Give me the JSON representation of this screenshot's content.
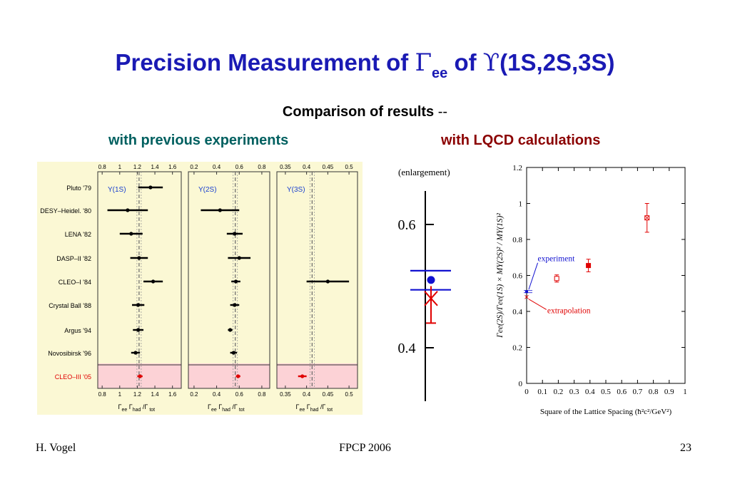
{
  "header": {
    "title_part1": "Precision Measurement of ",
    "gamma_symbol": "Γ",
    "gamma_sub": "ee",
    "title_part2": " of ",
    "upsilon_symbol": "ϒ",
    "title_part3": "(1S,2S,3S)",
    "subtitle": "Comparison of results",
    "subtitle_dash": " --",
    "left_heading": "with previous experiments",
    "right_heading": "with LQCD calculations"
  },
  "footer": {
    "author": "H. Vogel",
    "conference": "FPCP 2006",
    "page": "23"
  },
  "colors": {
    "title": "#1a1ab4",
    "left_heading": "#006060",
    "right_heading": "#8b0000",
    "cleo_iii": "#e00000",
    "experiment": "#1010d0",
    "lqcd": "#e00000"
  },
  "chart_data": [
    {
      "type": "scatter",
      "panel": "Υ(1S)",
      "experiments": [
        "Pluto '79",
        "DESY–Heidel. '80",
        "LENA '82",
        "DASP–II '82",
        "CLEO–I '84",
        "Crystal Ball '88",
        "Argus '94",
        "Novosibirsk '96",
        "CLEO–III '05"
      ],
      "values": [
        1.35,
        1.09,
        1.13,
        1.22,
        1.38,
        1.21,
        1.21,
        1.18,
        1.23
      ],
      "errors": [
        0.14,
        0.23,
        0.13,
        0.1,
        0.11,
        0.07,
        0.06,
        0.05,
        0.03
      ],
      "ticks": [
        "0.8",
        "1",
        "1.2",
        "1.4",
        "1.6"
      ],
      "xlim": [
        0.75,
        1.7
      ],
      "ref_line": 1.22,
      "xlabel": [
        "Γ",
        "ee",
        " Γ",
        "had",
        " /Γ",
        " tot"
      ]
    },
    {
      "type": "scatter",
      "panel": "Υ(2S)",
      "values": [
        null,
        0.43,
        0.56,
        0.6,
        0.57,
        0.56,
        0.52,
        0.55,
        0.59
      ],
      "errors": [
        null,
        0.17,
        0.07,
        0.1,
        0.04,
        0.04,
        0.02,
        0.03,
        0.02
      ],
      "ticks": [
        "0.2",
        "0.4",
        "0.6",
        "0.8"
      ],
      "xlim": [
        0.15,
        0.87
      ],
      "ref_line": 0.565,
      "xlabel": [
        "Γ",
        "ee",
        " Γ",
        "had",
        " /Γ",
        " tot"
      ]
    },
    {
      "type": "scatter",
      "panel": "Υ(3S)",
      "values": [
        null,
        null,
        null,
        null,
        0.45,
        null,
        null,
        null,
        0.39
      ],
      "errors": [
        null,
        null,
        null,
        null,
        0.05,
        null,
        null,
        null,
        0.01
      ],
      "ticks": [
        "0.35",
        "0.4",
        "0.45",
        "0.5"
      ],
      "xlim": [
        0.33,
        0.52
      ],
      "ref_line": 0.413,
      "xlabel": [
        "Γ",
        "ee",
        " Γ",
        "had",
        " /Γ",
        " tot"
      ]
    },
    {
      "type": "scatter",
      "title": "(enlargement)",
      "ticks": [
        "0.6",
        "0.4"
      ],
      "ylim": [
        0.35,
        0.68
      ],
      "experiment": {
        "value": 0.51,
        "band": [
          0.494,
          0.525
        ]
      },
      "lqcd": {
        "value": 0.48,
        "error": [
          0.44,
          0.5
        ]
      }
    },
    {
      "type": "scatter",
      "xlabel": "Square of the Lattice Spacing (ħ²c²/GeV²)",
      "ylabel": "Γee(2S)/Γee(1S) × MΥ(2S)² / MΥ(1S)²",
      "xticks": [
        "0",
        "0.1",
        "0.2",
        "0.3",
        "0.4",
        "0.5",
        "0.6",
        "0.7",
        "0.8",
        "0.9",
        "1"
      ],
      "yticks": [
        "0",
        "0.2",
        "0.4",
        "0.6",
        "0.8",
        "1",
        "1.2"
      ],
      "xlim": [
        0,
        1
      ],
      "ylim": [
        0,
        1.2
      ],
      "points": [
        {
          "x": 0.19,
          "y": 0.583,
          "err": 0.02,
          "style": "open-square"
        },
        {
          "x": 0.39,
          "y": 0.655,
          "err": 0.035,
          "style": "filled-square"
        },
        {
          "x": 0.76,
          "y": 0.92,
          "err": 0.08,
          "style": "open-square-x"
        }
      ],
      "experiment_point": {
        "x": 0.0,
        "y": 0.51
      },
      "extrapolation_point": {
        "x": 0.0,
        "y": 0.48
      },
      "annotations": [
        "experiment",
        "extrapolation"
      ]
    }
  ]
}
